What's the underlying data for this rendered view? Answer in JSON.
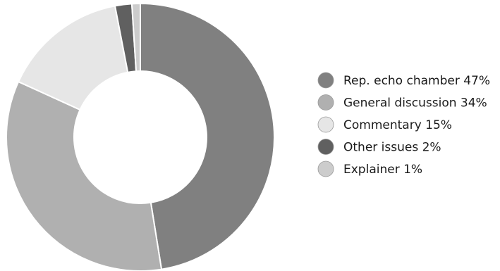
{
  "chart_data": {
    "type": "pie",
    "variant": "donut",
    "title": "",
    "slices": [
      {
        "label": "Rep. echo chamber",
        "value": 47,
        "display": "Rep. echo chamber 47%",
        "color": "#808080"
      },
      {
        "label": "General discussion",
        "value": 34,
        "display": "General discussion 34%",
        "color": "#b0b0b0"
      },
      {
        "label": "Commentary",
        "value": 15,
        "display": "Commentary 15%",
        "color": "#e6e6e6"
      },
      {
        "label": "Other issues",
        "value": 2,
        "display": "Other issues 2%",
        "color": "#606060"
      },
      {
        "label": "Explainer",
        "value": 1,
        "display": "Explainer 1%",
        "color": "#cccccc"
      }
    ],
    "start": "12 o'clock",
    "direction": "clockwise",
    "legend_position": "right"
  }
}
